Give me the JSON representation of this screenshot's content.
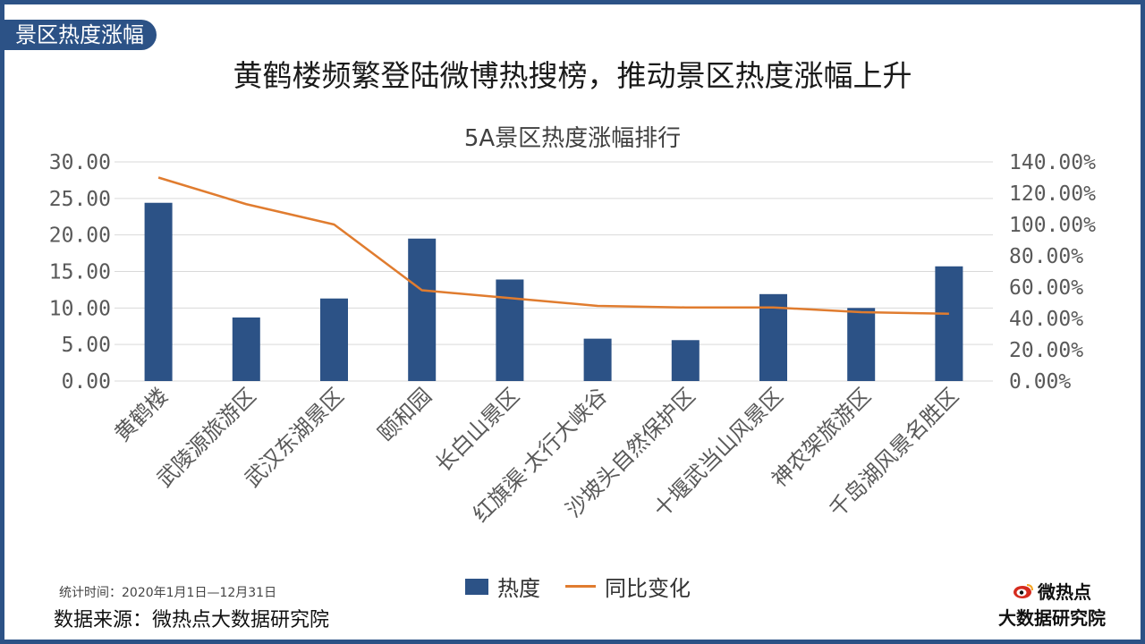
{
  "tag": "景区热度涨幅",
  "headline": "黄鹤楼频繁登陆微博热搜榜，推动景区热度涨幅上升",
  "chart_data": {
    "type": "bar",
    "title": "5A景区热度涨幅排行",
    "categories": [
      "黄鹤楼",
      "武陵源旅游区",
      "武汉东湖景区",
      "颐和园",
      "长白山景区",
      "红旗渠·太行大峡谷",
      "沙坡头自然保护区",
      "十堰武当山风景区",
      "神农架旅游区",
      "千岛湖风景名胜区"
    ],
    "series": [
      {
        "name": "热度",
        "type": "bar",
        "axis": "left",
        "values": [
          24.4,
          8.7,
          11.3,
          19.5,
          13.9,
          5.8,
          5.6,
          11.9,
          10.0,
          15.7
        ]
      },
      {
        "name": "同比变化",
        "type": "line",
        "axis": "right",
        "values": [
          130,
          113,
          100,
          58,
          53,
          48,
          47,
          47,
          44,
          43
        ]
      }
    ],
    "y_left": {
      "min": 0,
      "max": 30,
      "ticks": [
        "0.00",
        "5.00",
        "10.00",
        "15.00",
        "20.00",
        "25.00",
        "30.00"
      ]
    },
    "y_right": {
      "min": 0,
      "max": 140,
      "ticks": [
        "0.00%",
        "20.00%",
        "40.00%",
        "60.00%",
        "80.00%",
        "100.00%",
        "120.00%",
        "140.00%"
      ]
    },
    "grid": true,
    "legend_position": "bottom",
    "colors": {
      "bar": "#2c5286",
      "line": "#e07c2f"
    }
  },
  "legend": {
    "bar_label": "热度",
    "line_label": "同比变化"
  },
  "footer": {
    "stat_time": "统计时间：2020年1月1日—12月31日",
    "source": "数据来源：微热点大数据研究院"
  },
  "logo": {
    "line1": "微热点",
    "line2": "大数据研究院"
  }
}
